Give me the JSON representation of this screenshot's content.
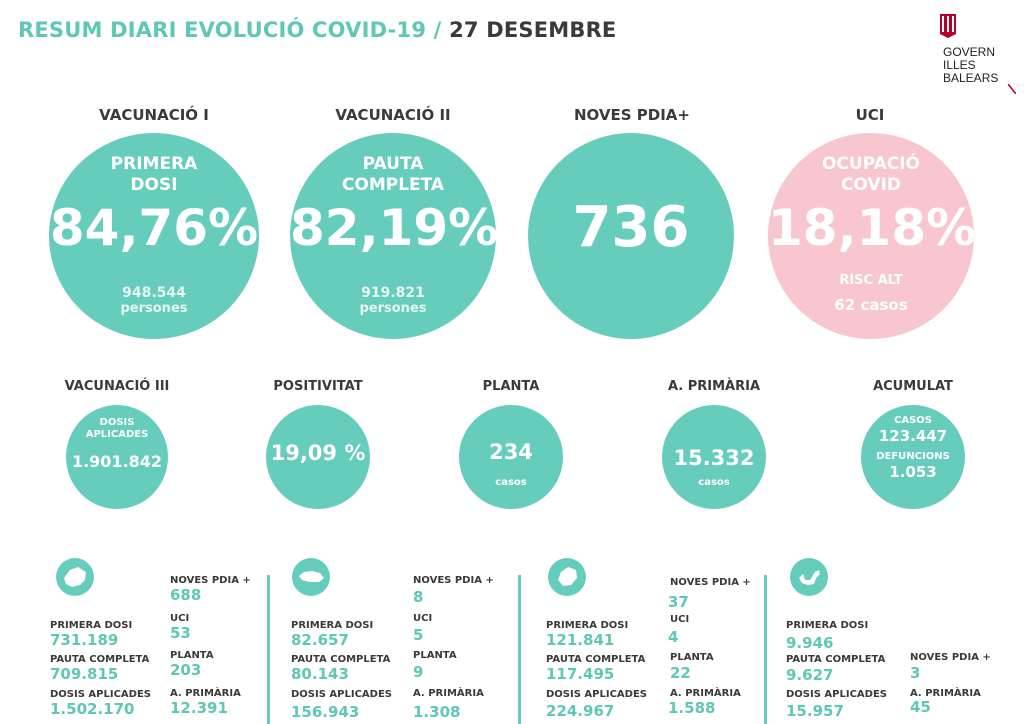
{
  "header": {
    "title_part1": "RESUM DIARI EVOLUCIÓ COVID-19 /",
    "title_part2": "27 DESEMBRE"
  },
  "logo": {
    "line1": "GOVERN",
    "line2": "ILLES",
    "line3": "BALEARS"
  },
  "colors": {
    "accent": "#66cdbd",
    "pink": "#f7c6cf",
    "text": "#3a3a3a"
  },
  "big_stats": [
    {
      "label": "VACUNACIÓ I",
      "sub1": "PRIMERA",
      "sub2": "DOSI",
      "value": "84,76%",
      "foot1": "948.544",
      "foot2": "persones"
    },
    {
      "label": "VACUNACIÓ II",
      "sub1": "PAUTA",
      "sub2": "COMPLETA",
      "value": "82,19%",
      "foot1": "919.821",
      "foot2": "persones"
    },
    {
      "label": "NOVES PDIA+",
      "value": "736"
    },
    {
      "label": "UCI",
      "sub1": "OCUPACIÓ",
      "sub2": "COVID",
      "value": "18,18%",
      "foot1": "RISC ALT",
      "foot2": "62 casos"
    }
  ],
  "small_stats": [
    {
      "label": "VACUNACIÓ III",
      "sub1": "DOSIS",
      "sub2": "APLICADES",
      "value": "1.901.842"
    },
    {
      "label": "POSITIVITAT",
      "value": "19,09 %"
    },
    {
      "label": "PLANTA",
      "value": "234",
      "foot": "casos"
    },
    {
      "label": "A. PRIMÀRIA",
      "value": "15.332",
      "foot": "casos"
    },
    {
      "label": "ACUMULAT",
      "sub1": "CASOS",
      "value1": "123.447",
      "sub2": "DEFUNCIONS",
      "value2": "1.053"
    }
  ],
  "islands": [
    {
      "icon": "mallorca-icon",
      "primera_dosi_label": "PRIMERA DOSI",
      "primera_dosi": "731.189",
      "pauta_label": "PAUTA COMPLETA",
      "pauta": "709.815",
      "dosis_label": "DOSIS APLICADES",
      "dosis": "1.502.170",
      "pdia_label": "NOVES PDIA +",
      "pdia": "688",
      "uci_label": "UCI",
      "uci": "53",
      "planta_label": "PLANTA",
      "planta": "203",
      "primaria_label": "A. PRIMÀRIA",
      "primaria": "12.391"
    },
    {
      "icon": "menorca-icon",
      "primera_dosi_label": "PRIMERA DOSI",
      "primera_dosi": "82.657",
      "pauta_label": "PAUTA COMPLETA",
      "pauta": "80.143",
      "dosis_label": "DOSIS APLICADES",
      "dosis": "156.943",
      "pdia_label": "NOVES PDIA +",
      "pdia": "8",
      "uci_label": "UCI",
      "uci": "5",
      "planta_label": "PLANTA",
      "planta": "9",
      "primaria_label": "A. PRIMÀRIA",
      "primaria": "1.308"
    },
    {
      "icon": "eivissa-icon",
      "primera_dosi_label": "PRIMERA DOSI",
      "primera_dosi": "121.841",
      "pauta_label": "PAUTA COMPLETA",
      "pauta": "117.495",
      "dosis_label": "DOSIS APLICADES",
      "dosis": "224.967",
      "pdia_label": "NOVES PDIA +",
      "pdia": "37",
      "uci_label": "UCI",
      "uci": "4",
      "planta_label": "PLANTA",
      "planta": "22",
      "primaria_label": "A. PRIMÀRIA",
      "primaria": "1.588"
    },
    {
      "icon": "formentera-icon",
      "primera_dosi_label": "PRIMERA DOSI",
      "primera_dosi": "9.946",
      "pauta_label": "PAUTA COMPLETA",
      "pauta": "9.627",
      "dosis_label": "DOSIS APLICADES",
      "dosis": "15.957",
      "pdia_label": "NOVES PDIA +",
      "pdia": "3",
      "primaria_label": "A. PRIMÀRIA",
      "primaria": "45"
    }
  ]
}
